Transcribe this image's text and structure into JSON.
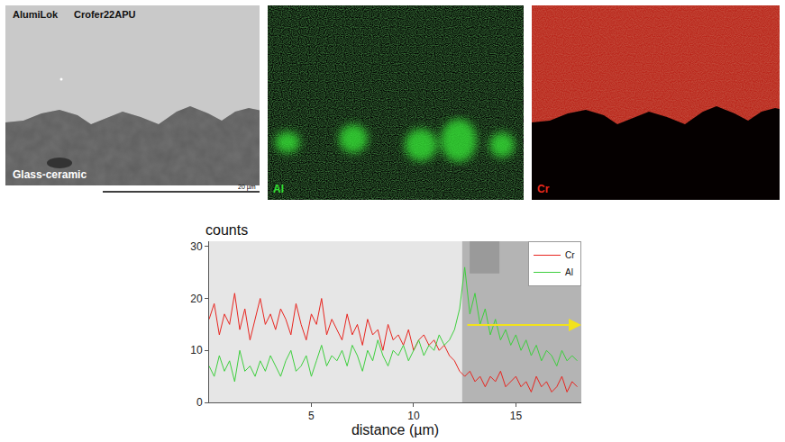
{
  "panels": [
    {
      "labels": [
        "AlumiLok",
        "Crofer22APU",
        "Glass-ceramic"
      ],
      "scale_bar": "20 µm"
    },
    {
      "label": "Al",
      "color": "#33e033"
    },
    {
      "label": "Cr",
      "color": "#e82a1e"
    }
  ],
  "chart_data": {
    "type": "line",
    "x_label": "distance (µm)",
    "y_label": "counts",
    "x": [
      0,
      0.25,
      0.5,
      0.75,
      1,
      1.25,
      1.5,
      1.75,
      2,
      2.25,
      2.5,
      2.75,
      3,
      3.25,
      3.5,
      3.75,
      4,
      4.25,
      4.5,
      4.75,
      5,
      5.25,
      5.5,
      5.75,
      6,
      6.25,
      6.5,
      6.75,
      7,
      7.25,
      7.5,
      7.75,
      8,
      8.25,
      8.5,
      8.75,
      9,
      9.25,
      9.5,
      9.75,
      10,
      10.25,
      10.5,
      10.75,
      11,
      11.25,
      11.5,
      11.75,
      12,
      12.25,
      12.5,
      12.75,
      13,
      13.25,
      13.5,
      13.75,
      14,
      14.25,
      14.5,
      14.75,
      15,
      15.25,
      15.5,
      15.75,
      16,
      16.25,
      16.5,
      16.75,
      17,
      17.25,
      17.5,
      17.75,
      18
    ],
    "series": [
      {
        "name": "Cr",
        "color": "#e8251f",
        "values": [
          16,
          19,
          13,
          17,
          15,
          21,
          14,
          18,
          12,
          16,
          20,
          15,
          17,
          14,
          18,
          16,
          13,
          19,
          15,
          12,
          17,
          15,
          20,
          13,
          16,
          14,
          12,
          17,
          13,
          15,
          11,
          16,
          13,
          14,
          10,
          15,
          12,
          13,
          11,
          14,
          10,
          12,
          13,
          11,
          12,
          10,
          11,
          9,
          8,
          6,
          5,
          6,
          4,
          5,
          3,
          5,
          4,
          6,
          3,
          4,
          5,
          3,
          4,
          2,
          5,
          3,
          4,
          2,
          3,
          5,
          2,
          4,
          3
        ]
      },
      {
        "name": "Al",
        "color": "#3ecf3e",
        "values": [
          7,
          5,
          9,
          6,
          8,
          4,
          10,
          6,
          7,
          5,
          8,
          6,
          9,
          7,
          5,
          8,
          10,
          6,
          7,
          9,
          5,
          8,
          11,
          7,
          9,
          8,
          10,
          7,
          11,
          9,
          6,
          10,
          8,
          12,
          9,
          7,
          10,
          9,
          11,
          8,
          10,
          12,
          9,
          11,
          10,
          13,
          11,
          12,
          14,
          18,
          26,
          17,
          21,
          15,
          18,
          13,
          16,
          12,
          14,
          11,
          13,
          10,
          12,
          9,
          11,
          8,
          10,
          9,
          7,
          10,
          8,
          9,
          8
        ]
      }
    ],
    "xlim": [
      0,
      18.2
    ],
    "ylim": [
      0,
      31
    ],
    "xticks": [
      5,
      10,
      15
    ],
    "yticks": [
      0,
      10,
      20,
      30
    ],
    "legend": "upper right",
    "grid": false
  }
}
